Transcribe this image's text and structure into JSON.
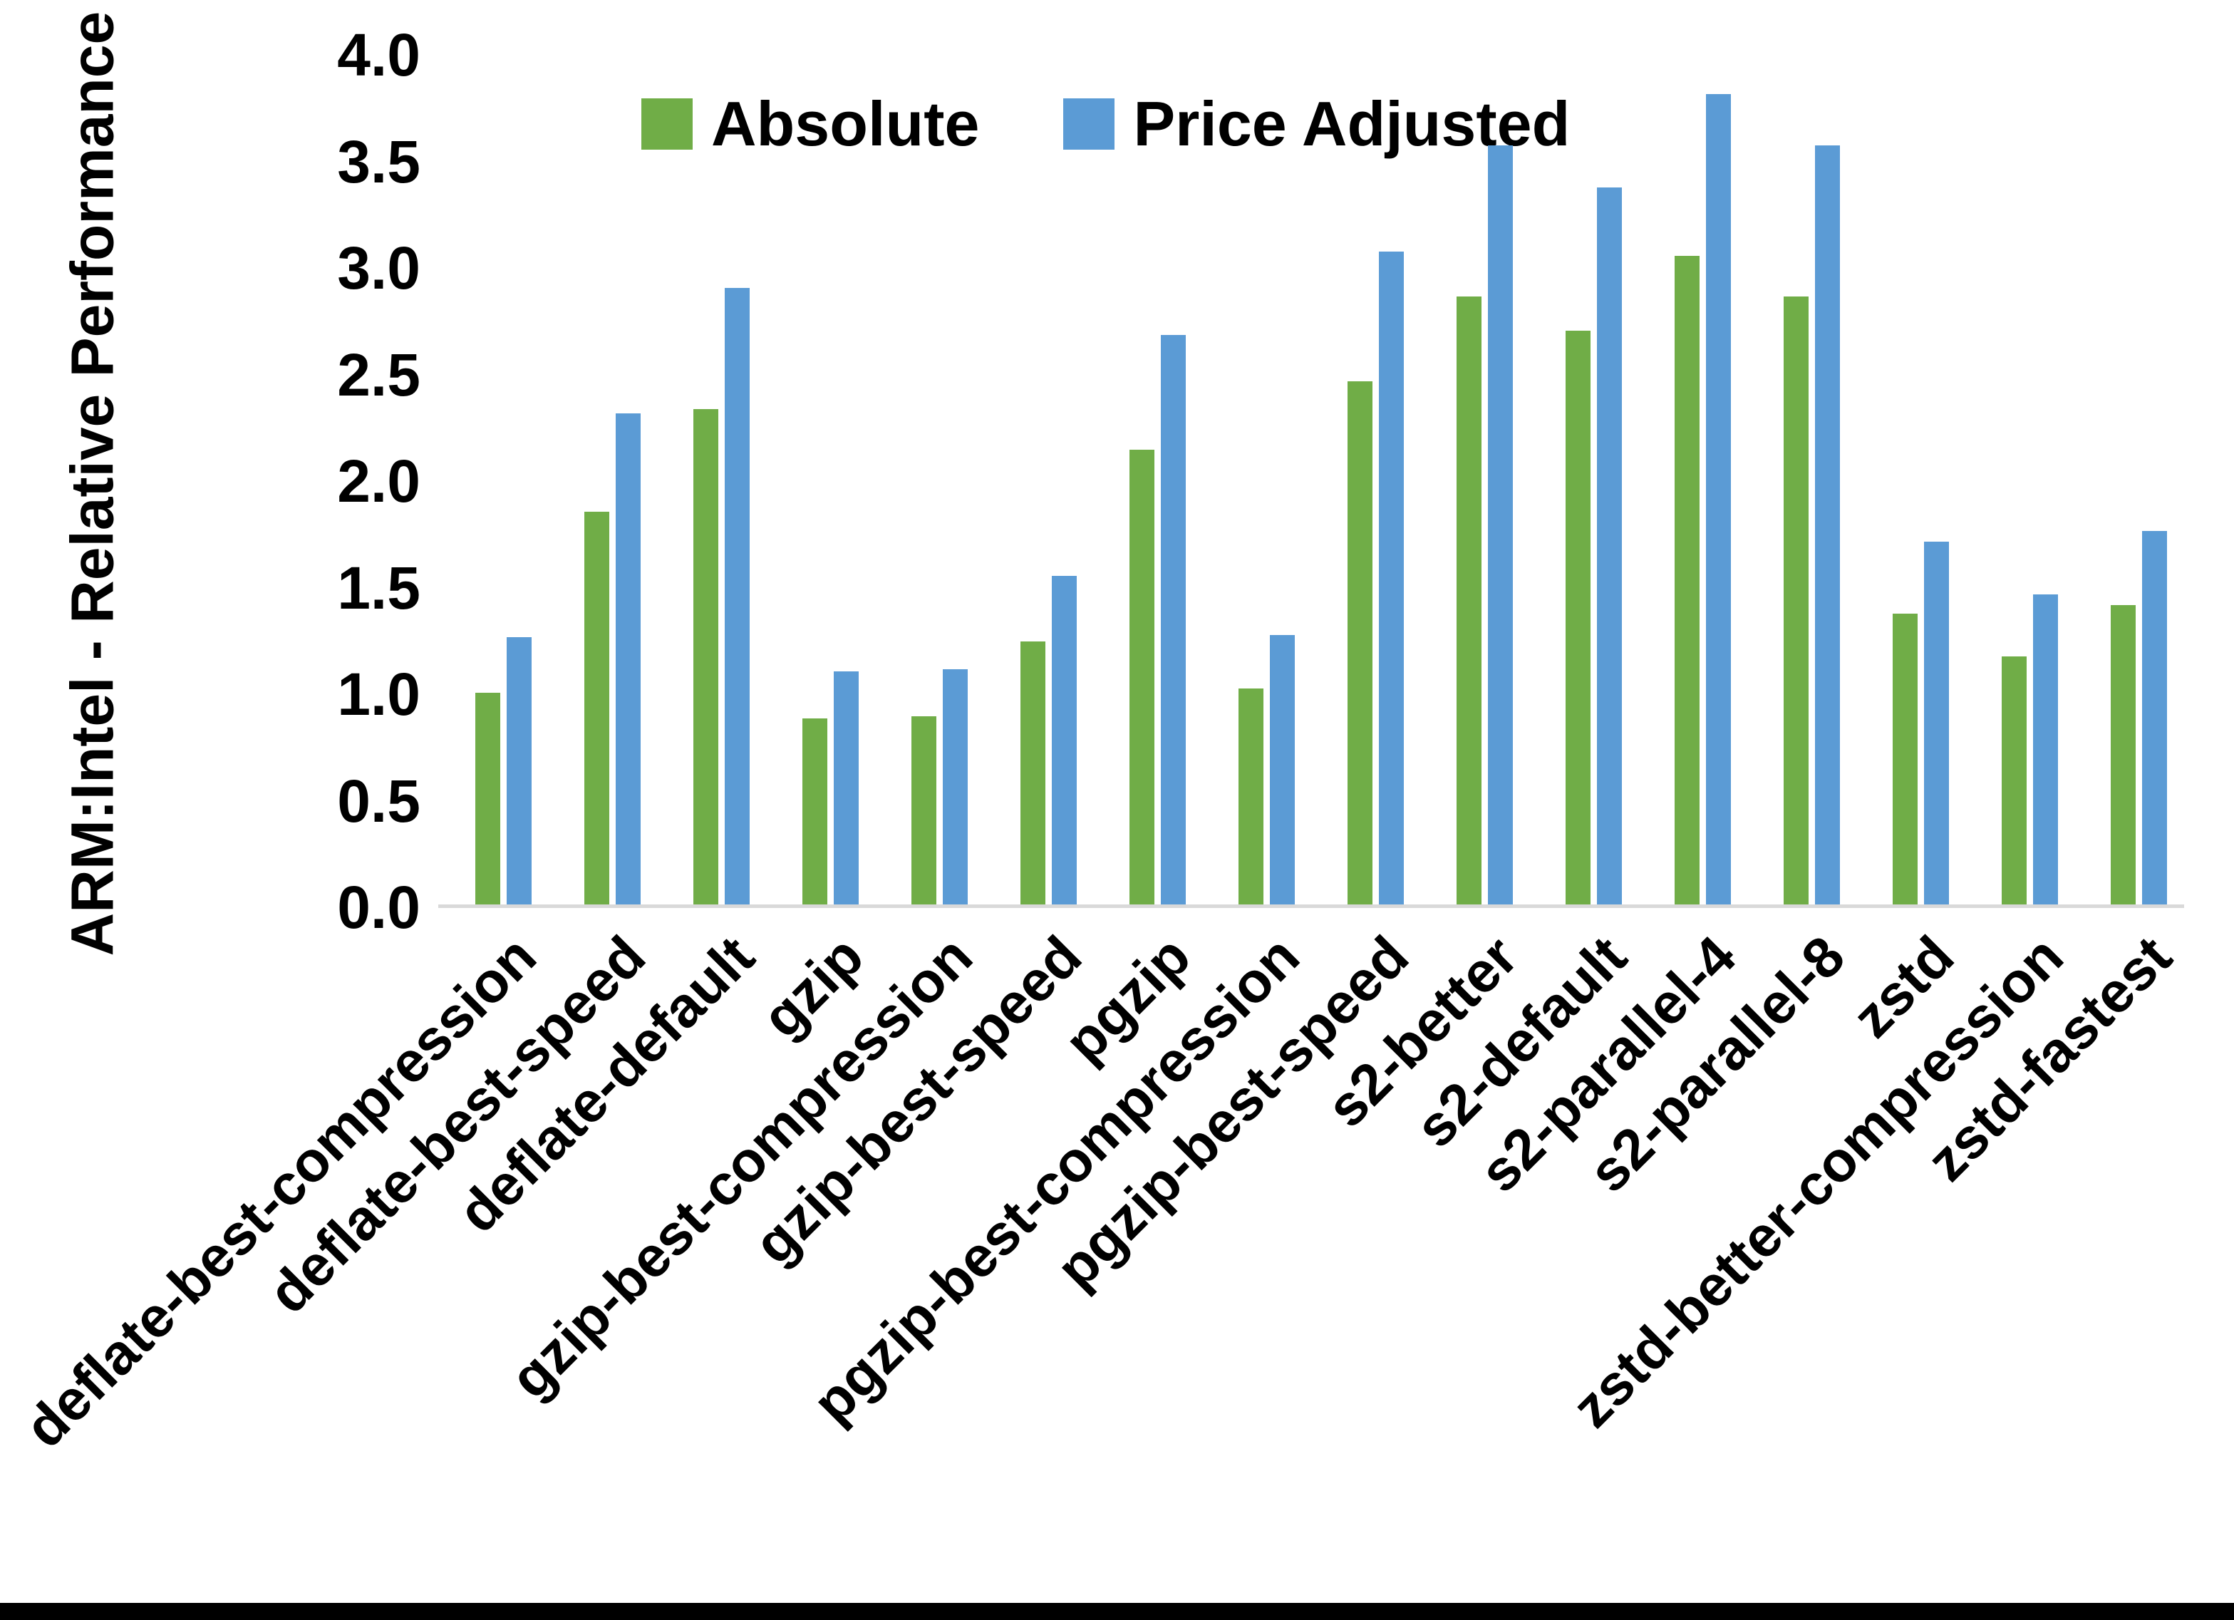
{
  "page": {
    "background": "#ffffff",
    "bottom_bar_color": "#000000",
    "axis_line_color": "#d9d9d9"
  },
  "y_axis": {
    "title": "ARM:Intel - Relative Performance",
    "tick_labels": [
      "0.0",
      "0.5",
      "1.0",
      "1.5",
      "2.0",
      "2.5",
      "3.0",
      "3.5",
      "4.0"
    ],
    "min": 0,
    "max": 4
  },
  "legend": {
    "items": [
      {
        "label": "Absolute",
        "color": "#70AD47"
      },
      {
        "label": "Price Adjusted",
        "color": "#5B9BD5"
      }
    ]
  },
  "chart_data": {
    "type": "bar",
    "title": "",
    "xlabel": "",
    "ylabel": "ARM:Intel - Relative Performance",
    "ylim": [
      0,
      4.0
    ],
    "ytick_step": 0.5,
    "grid": false,
    "legend_position": "top",
    "categories": [
      "deflate-best-compression",
      "deflate-best-speed",
      "deflate-default",
      "gzip",
      "gzip-best-compression",
      "gzip-best-speed",
      "pgzip",
      "pgzip-best-compression",
      "pgzip-best-speed",
      "s2-better",
      "s2-default",
      "s2-parallel-4",
      "s2-parallel-8",
      "zstd",
      "zstd-better-compression",
      "zstd-fastest"
    ],
    "series": [
      {
        "name": "Absolute",
        "color": "#70AD47",
        "values": [
          1.0,
          1.85,
          2.33,
          0.88,
          0.89,
          1.24,
          2.14,
          1.02,
          2.46,
          2.86,
          2.7,
          3.05,
          2.86,
          1.37,
          1.17,
          1.41
        ]
      },
      {
        "name": "Price Adjusted",
        "color": "#5B9BD5",
        "values": [
          1.26,
          2.31,
          2.9,
          1.1,
          1.11,
          1.55,
          2.68,
          1.27,
          3.07,
          3.57,
          3.37,
          3.81,
          3.57,
          1.71,
          1.46,
          1.76
        ]
      }
    ]
  }
}
